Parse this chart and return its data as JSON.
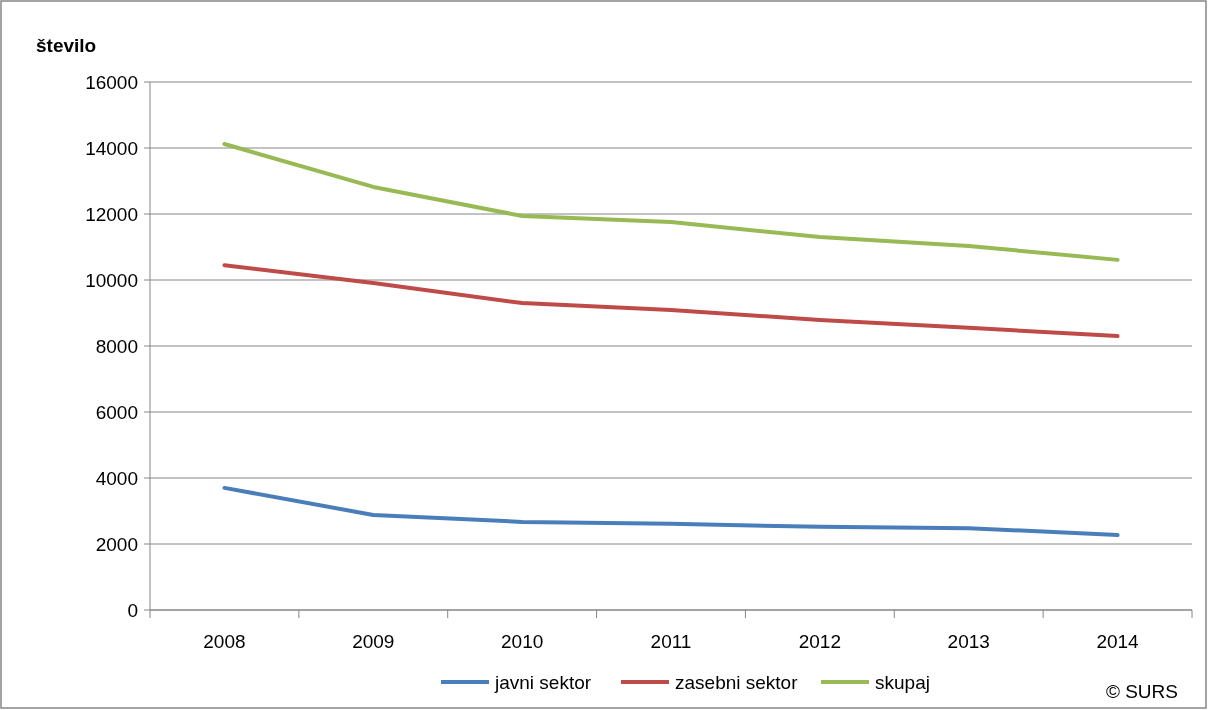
{
  "chart_data": {
    "type": "line",
    "ylabel": "število",
    "categories": [
      "2008",
      "2009",
      "2010",
      "2011",
      "2012",
      "2013",
      "2014"
    ],
    "series": [
      {
        "name": "javni sektor",
        "color": "#4a7ebb",
        "values": [
          3700,
          2880,
          2670,
          2610,
          2520,
          2480,
          2270
        ]
      },
      {
        "name": "zasebni sektor",
        "color": "#be4b48",
        "values": [
          10450,
          9910,
          9300,
          9090,
          8790,
          8550,
          8300
        ]
      },
      {
        "name": "skupaj",
        "color": "#98b954",
        "values": [
          14120,
          12820,
          11940,
          11760,
          11300,
          11030,
          10610
        ]
      }
    ],
    "ylim": [
      0,
      16000
    ],
    "yticks": [
      0,
      2000,
      4000,
      6000,
      8000,
      10000,
      12000,
      14000,
      16000
    ],
    "grid": "y",
    "legend": "bottom",
    "marker": "none",
    "line_style": "solid",
    "annotations": [
      "© SURS"
    ]
  }
}
